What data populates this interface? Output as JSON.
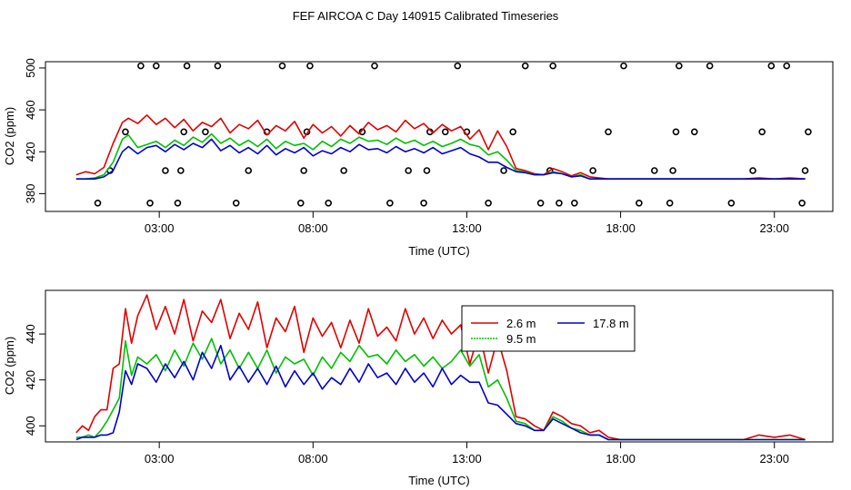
{
  "title": "FEF AIRCOA C  Day 140915  Calibrated Timeseries",
  "colors": {
    "red": "#e00000",
    "green": "#00c000",
    "blue": "#0000d0",
    "flag": "#000000"
  },
  "chart_data": [
    {
      "type": "line",
      "name": "top-panel",
      "xlabel": "Time (UTC)",
      "ylabel": "CO2 (ppm)",
      "xlim": [
        -0.7,
        24.9
      ],
      "ylim": [
        363,
        506
      ],
      "xticks": [
        3,
        8,
        13,
        18,
        23
      ],
      "xtick_labels": [
        "03:00",
        "08:00",
        "13:00",
        "18:00",
        "23:00"
      ],
      "yticks": [
        380,
        420,
        460,
        500
      ],
      "ytick_labels": [
        "380",
        "420",
        "460",
        "500"
      ],
      "grid": false,
      "series": [
        {
          "name": "2.6 m",
          "color": "#e00000",
          "x": [
            0.3,
            0.6,
            0.9,
            1.2,
            1.5,
            1.8,
            2.0,
            2.3,
            2.6,
            2.9,
            3.2,
            3.5,
            3.8,
            4.1,
            4.4,
            4.7,
            5.0,
            5.3,
            5.6,
            5.9,
            6.2,
            6.5,
            6.8,
            7.1,
            7.4,
            7.7,
            8.0,
            8.3,
            8.6,
            8.9,
            9.2,
            9.5,
            9.8,
            10.1,
            10.4,
            10.7,
            11.0,
            11.3,
            11.6,
            11.9,
            12.2,
            12.5,
            12.8,
            13.1,
            13.4,
            13.7,
            14.0,
            14.3,
            14.6,
            14.9,
            15.2,
            15.5,
            15.8,
            16.1,
            16.4,
            16.7,
            17.0,
            17.3,
            17.6,
            18.0,
            18.5,
            19.0,
            19.5,
            20.0,
            20.5,
            21.0,
            21.5,
            22.0,
            22.5,
            23.0,
            23.5,
            24.0
          ],
          "y": [
            398,
            401,
            399,
            405,
            428,
            448,
            452,
            447,
            455,
            446,
            452,
            443,
            451,
            440,
            448,
            444,
            452,
            438,
            446,
            442,
            450,
            436,
            445,
            440,
            449,
            433,
            446,
            438,
            444,
            435,
            445,
            437,
            448,
            441,
            445,
            439,
            450,
            442,
            447,
            438,
            446,
            440,
            444,
            432,
            441,
            422,
            440,
            425,
            404,
            402,
            399,
            398,
            404,
            401,
            397,
            400,
            396,
            395,
            394,
            394,
            394,
            394,
            394,
            394,
            394,
            394,
            394,
            394,
            395,
            394,
            395,
            394
          ]
        },
        {
          "name": "9.5 m",
          "color": "#00c000",
          "x": [
            0.3,
            0.6,
            0.9,
            1.2,
            1.5,
            1.8,
            2.0,
            2.3,
            2.6,
            2.9,
            3.2,
            3.5,
            3.8,
            4.1,
            4.4,
            4.7,
            5.0,
            5.3,
            5.6,
            5.9,
            6.2,
            6.5,
            6.8,
            7.1,
            7.4,
            7.7,
            8.0,
            8.3,
            8.6,
            8.9,
            9.2,
            9.5,
            9.8,
            10.1,
            10.4,
            10.7,
            11.0,
            11.3,
            11.6,
            11.9,
            12.2,
            12.5,
            12.8,
            13.1,
            13.4,
            13.7,
            14.0,
            14.3,
            14.6,
            14.9,
            15.2,
            15.5,
            15.8,
            16.1,
            16.4,
            16.7,
            17.0,
            17.3,
            17.6,
            18.0,
            18.5,
            19.0,
            19.5,
            20.0,
            20.5,
            21.0,
            21.5,
            22.0,
            22.5,
            23.0,
            23.5,
            24.0
          ],
          "y": [
            394,
            394,
            395,
            398,
            410,
            432,
            436,
            424,
            427,
            430,
            424,
            431,
            426,
            434,
            429,
            437,
            428,
            433,
            426,
            431,
            425,
            432,
            423,
            430,
            426,
            428,
            422,
            430,
            425,
            432,
            428,
            434,
            430,
            431,
            427,
            433,
            428,
            431,
            426,
            430,
            425,
            428,
            432,
            427,
            425,
            417,
            420,
            412,
            402,
            401,
            398,
            398,
            401,
            399,
            396,
            398,
            394,
            394,
            394,
            394,
            394,
            394,
            394,
            394,
            394,
            394,
            394,
            394,
            394,
            394,
            394,
            394
          ]
        },
        {
          "name": "17.8 m",
          "color": "#0000d0",
          "x": [
            0.3,
            0.6,
            0.9,
            1.2,
            1.5,
            1.8,
            2.0,
            2.3,
            2.6,
            2.9,
            3.2,
            3.5,
            3.8,
            4.1,
            4.4,
            4.7,
            5.0,
            5.3,
            5.6,
            5.9,
            6.2,
            6.5,
            6.8,
            7.1,
            7.4,
            7.7,
            8.0,
            8.3,
            8.6,
            8.9,
            9.2,
            9.5,
            9.8,
            10.1,
            10.4,
            10.7,
            11.0,
            11.3,
            11.6,
            11.9,
            12.2,
            12.5,
            12.8,
            13.1,
            13.4,
            13.7,
            14.0,
            14.3,
            14.6,
            14.9,
            15.2,
            15.5,
            15.8,
            16.1,
            16.4,
            16.7,
            17.0,
            17.3,
            17.6,
            18.0,
            18.5,
            19.0,
            19.5,
            20.0,
            20.5,
            21.0,
            21.5,
            22.0,
            22.5,
            23.0,
            23.5,
            24.0
          ],
          "y": [
            394,
            394,
            394,
            396,
            402,
            420,
            425,
            418,
            424,
            426,
            420,
            427,
            422,
            428,
            424,
            432,
            421,
            426,
            419,
            424,
            418,
            426,
            417,
            423,
            419,
            424,
            416,
            421,
            418,
            424,
            420,
            427,
            422,
            423,
            419,
            425,
            420,
            423,
            419,
            424,
            418,
            421,
            424,
            418,
            415,
            410,
            410,
            405,
            401,
            400,
            398,
            398,
            400,
            399,
            396,
            397,
            394,
            394,
            394,
            394,
            394,
            394,
            394,
            394,
            394,
            394,
            394,
            394,
            394,
            394,
            394,
            394
          ]
        }
      ],
      "flag_points": {
        "x": [
          1.0,
          1.4,
          1.9,
          2.4,
          2.7,
          2.9,
          3.2,
          3.6,
          3.7,
          3.8,
          3.9,
          4.5,
          4.9,
          5.5,
          5.9,
          6.5,
          7.0,
          7.6,
          7.7,
          7.8,
          7.9,
          8.5,
          9.0,
          9.6,
          10.0,
          10.5,
          11.1,
          11.6,
          11.7,
          11.8,
          12.3,
          12.7,
          13.0,
          13.7,
          14.2,
          14.5,
          14.9,
          15.4,
          15.7,
          15.8,
          16.0,
          16.5,
          17.1,
          17.6,
          18.1,
          18.6,
          19.1,
          19.6,
          19.7,
          19.8,
          19.9,
          20.4,
          20.9,
          21.6,
          22.3,
          22.6,
          22.9,
          23.4,
          23.9,
          24.0,
          24.1
        ],
        "y": [
          371,
          402,
          439,
          502,
          371,
          502,
          402,
          371,
          402,
          439,
          502,
          439,
          502,
          371,
          402,
          439,
          502,
          371,
          402,
          439,
          502,
          371,
          402,
          439,
          502,
          371,
          402,
          371,
          402,
          439,
          439,
          502,
          439,
          371,
          402,
          439,
          502,
          371,
          402,
          502,
          371,
          371,
          402,
          439,
          502,
          371,
          402,
          371,
          402,
          439,
          502,
          439,
          502,
          371,
          402,
          439,
          502,
          502,
          371,
          402,
          439
        ]
      }
    },
    {
      "type": "line",
      "name": "bottom-panel",
      "xlabel": "Time (UTC)",
      "ylabel": "CO2 (ppm)",
      "xlim": [
        -0.7,
        24.9
      ],
      "ylim": [
        393,
        459
      ],
      "xticks": [
        3,
        8,
        13,
        18,
        23
      ],
      "xtick_labels": [
        "03:00",
        "08:00",
        "13:00",
        "18:00",
        "23:00"
      ],
      "yticks": [
        400,
        420,
        440
      ],
      "ytick_labels": [
        "400",
        "420",
        "440"
      ],
      "grid": false,
      "legend": {
        "position": "top-right",
        "entries": [
          "2.6 m",
          "9.5 m",
          "17.8 m"
        ]
      },
      "series": [
        {
          "name": "2.6 m",
          "color": "#e00000",
          "x": [
            0.3,
            0.5,
            0.7,
            0.9,
            1.1,
            1.3,
            1.5,
            1.7,
            1.9,
            2.1,
            2.3,
            2.6,
            2.9,
            3.2,
            3.5,
            3.8,
            4.1,
            4.4,
            4.7,
            5.0,
            5.3,
            5.6,
            5.9,
            6.2,
            6.5,
            6.8,
            7.1,
            7.4,
            7.7,
            8.0,
            8.3,
            8.6,
            8.9,
            9.2,
            9.5,
            9.8,
            10.1,
            10.4,
            10.7,
            11.0,
            11.3,
            11.6,
            11.9,
            12.2,
            12.5,
            12.8,
            13.1,
            13.4,
            13.7,
            14.0,
            14.3,
            14.6,
            14.9,
            15.2,
            15.5,
            15.8,
            16.1,
            16.4,
            16.7,
            17.0,
            17.3,
            17.6,
            18.0,
            18.5,
            19.0,
            19.5,
            20.0,
            20.5,
            21.0,
            21.5,
            22.0,
            22.5,
            23.0,
            23.5,
            24.0
          ],
          "y": [
            397,
            400,
            398,
            404,
            407,
            407,
            425,
            427,
            451,
            436,
            448,
            457,
            442,
            452,
            440,
            455,
            437,
            450,
            445,
            455,
            438,
            449,
            442,
            454,
            434,
            447,
            441,
            452,
            432,
            447,
            439,
            445,
            434,
            446,
            436,
            451,
            439,
            443,
            437,
            451,
            440,
            447,
            438,
            446,
            440,
            444,
            427,
            441,
            423,
            438,
            424,
            404,
            403,
            400,
            398,
            406,
            404,
            401,
            400,
            397,
            398,
            395,
            394,
            394,
            394,
            394,
            394,
            394,
            394,
            394,
            394,
            396,
            395,
            396,
            394
          ]
        },
        {
          "name": "9.5 m",
          "color": "#00c000",
          "x": [
            0.3,
            0.5,
            0.7,
            0.9,
            1.1,
            1.3,
            1.5,
            1.7,
            1.9,
            2.1,
            2.3,
            2.6,
            2.9,
            3.2,
            3.5,
            3.8,
            4.1,
            4.4,
            4.7,
            5.0,
            5.3,
            5.6,
            5.9,
            6.2,
            6.5,
            6.8,
            7.1,
            7.4,
            7.7,
            8.0,
            8.3,
            8.6,
            8.9,
            9.2,
            9.5,
            9.8,
            10.1,
            10.4,
            10.7,
            11.0,
            11.3,
            11.6,
            11.9,
            12.2,
            12.5,
            12.8,
            13.1,
            13.4,
            13.7,
            14.0,
            14.3,
            14.6,
            14.9,
            15.2,
            15.5,
            15.8,
            16.1,
            16.4,
            16.7,
            17.0,
            17.3,
            17.6,
            18.0,
            18.5,
            19.0,
            19.5,
            20.0,
            20.5,
            21.0,
            21.5,
            22.0,
            22.5,
            23.0,
            23.5,
            24.0
          ],
          "y": [
            395,
            395,
            396,
            395,
            398,
            402,
            407,
            412,
            437,
            422,
            430,
            427,
            431,
            424,
            433,
            426,
            436,
            429,
            438,
            427,
            433,
            425,
            432,
            425,
            433,
            423,
            430,
            427,
            429,
            422,
            430,
            425,
            432,
            428,
            435,
            430,
            431,
            427,
            433,
            428,
            431,
            426,
            430,
            425,
            428,
            433,
            426,
            431,
            417,
            420,
            412,
            402,
            401,
            398,
            398,
            404,
            402,
            399,
            398,
            396,
            396,
            394,
            394,
            394,
            394,
            394,
            394,
            394,
            394,
            394,
            394,
            394,
            394,
            394,
            394
          ]
        },
        {
          "name": "17.8 m",
          "color": "#0000d0",
          "x": [
            0.3,
            0.5,
            0.7,
            0.9,
            1.1,
            1.3,
            1.5,
            1.7,
            1.9,
            2.1,
            2.3,
            2.6,
            2.9,
            3.2,
            3.5,
            3.8,
            4.1,
            4.4,
            4.7,
            5.0,
            5.3,
            5.6,
            5.9,
            6.2,
            6.5,
            6.8,
            7.1,
            7.4,
            7.7,
            8.0,
            8.3,
            8.6,
            8.9,
            9.2,
            9.5,
            9.8,
            10.1,
            10.4,
            10.7,
            11.0,
            11.3,
            11.6,
            11.9,
            12.2,
            12.5,
            12.8,
            13.1,
            13.4,
            13.7,
            14.0,
            14.3,
            14.6,
            14.9,
            15.2,
            15.5,
            15.8,
            16.1,
            16.4,
            16.7,
            17.0,
            17.3,
            17.6,
            18.0,
            18.5,
            19.0,
            19.5,
            20.0,
            20.5,
            21.0,
            21.5,
            22.0,
            22.5,
            23.0,
            23.5,
            24.0
          ],
          "y": [
            394,
            395,
            395,
            395,
            396,
            396,
            397,
            406,
            424,
            418,
            427,
            425,
            419,
            427,
            421,
            428,
            420,
            432,
            425,
            435,
            420,
            426,
            419,
            425,
            418,
            426,
            417,
            424,
            418,
            423,
            416,
            421,
            418,
            425,
            419,
            427,
            421,
            423,
            418,
            425,
            419,
            423,
            417,
            425,
            418,
            422,
            419,
            419,
            410,
            409,
            405,
            401,
            400,
            398,
            398,
            403,
            401,
            399,
            397,
            396,
            396,
            394,
            394,
            394,
            394,
            394,
            394,
            394,
            394,
            394,
            394,
            394,
            394,
            394,
            394
          ]
        }
      ]
    }
  ]
}
